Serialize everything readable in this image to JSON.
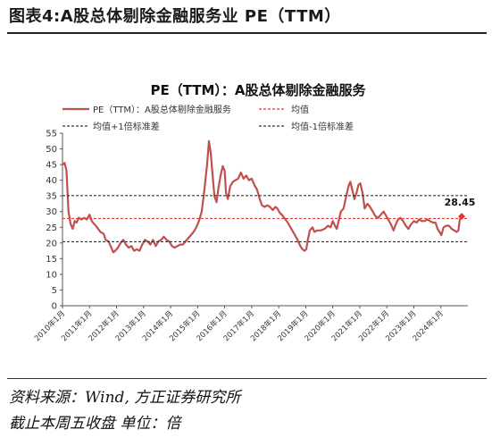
{
  "figure_title": "图表4:A股总体剔除金融服务业 PE（TTM）",
  "source": "资料来源：Wind, 方正证券研究所",
  "note": "截止本周五收盘 单位：倍",
  "chart_data": {
    "type": "line",
    "title": "PE（TTM）：A股总体剔除金融服务",
    "ylim": [
      0,
      55
    ],
    "yticks": [
      0,
      5,
      10,
      15,
      20,
      25,
      30,
      35,
      40,
      45,
      50,
      55
    ],
    "xlim": [
      2010.0,
      2025.0
    ],
    "xticks": [
      {
        "x": 2010.0,
        "label": "2010年1月"
      },
      {
        "x": 2011.0,
        "label": "2011年1月"
      },
      {
        "x": 2012.0,
        "label": "2012年1月"
      },
      {
        "x": 2013.0,
        "label": "2013年1月"
      },
      {
        "x": 2014.0,
        "label": "2014年1月"
      },
      {
        "x": 2015.0,
        "label": "2015年1月"
      },
      {
        "x": 2016.0,
        "label": "2016年1月"
      },
      {
        "x": 2017.0,
        "label": "2017年1月"
      },
      {
        "x": 2018.0,
        "label": "2018年1月"
      },
      {
        "x": 2019.0,
        "label": "2019年1月"
      },
      {
        "x": 2020.0,
        "label": "2020年1月"
      },
      {
        "x": 2021.0,
        "label": "2021年1月"
      },
      {
        "x": 2022.0,
        "label": "2022年1月"
      },
      {
        "x": 2023.0,
        "label": "2023年1月"
      },
      {
        "x": 2024.0,
        "label": "2024年1月"
      }
    ],
    "grid": false,
    "legend": "top-left",
    "series": [
      {
        "name": "PE（TTM）：A股总体剔除金融服务",
        "color": "#c0504d",
        "style": "solid",
        "points": [
          [
            2010.0,
            45.0
          ],
          [
            2010.08,
            45.5
          ],
          [
            2010.15,
            43.0
          ],
          [
            2010.22,
            30.0
          ],
          [
            2010.3,
            26.0
          ],
          [
            2010.38,
            24.5
          ],
          [
            2010.45,
            27.0
          ],
          [
            2010.52,
            26.5
          ],
          [
            2010.6,
            28.0
          ],
          [
            2010.7,
            27.5
          ],
          [
            2010.8,
            28.0
          ],
          [
            2010.9,
            27.5
          ],
          [
            2011.0,
            29.0
          ],
          [
            2011.08,
            27.0
          ],
          [
            2011.18,
            26.0
          ],
          [
            2011.28,
            25.0
          ],
          [
            2011.4,
            23.5
          ],
          [
            2011.52,
            23.0
          ],
          [
            2011.6,
            21.0
          ],
          [
            2011.7,
            20.5
          ],
          [
            2011.78,
            19.0
          ],
          [
            2011.88,
            17.0
          ],
          [
            2011.95,
            17.5
          ],
          [
            2012.05,
            18.5
          ],
          [
            2012.15,
            20.0
          ],
          [
            2012.25,
            21.0
          ],
          [
            2012.35,
            19.5
          ],
          [
            2012.45,
            18.5
          ],
          [
            2012.55,
            19.0
          ],
          [
            2012.65,
            17.5
          ],
          [
            2012.75,
            18.0
          ],
          [
            2012.85,
            17.5
          ],
          [
            2012.95,
            19.5
          ],
          [
            2013.05,
            21.0
          ],
          [
            2013.15,
            20.5
          ],
          [
            2013.25,
            19.5
          ],
          [
            2013.35,
            21.0
          ],
          [
            2013.45,
            19.0
          ],
          [
            2013.55,
            20.5
          ],
          [
            2013.65,
            21.0
          ],
          [
            2013.75,
            22.0
          ],
          [
            2013.85,
            21.0
          ],
          [
            2013.95,
            20.5
          ],
          [
            2014.05,
            19.0
          ],
          [
            2014.15,
            18.5
          ],
          [
            2014.25,
            19.0
          ],
          [
            2014.35,
            19.5
          ],
          [
            2014.45,
            19.5
          ],
          [
            2014.55,
            20.5
          ],
          [
            2014.65,
            21.5
          ],
          [
            2014.75,
            22.5
          ],
          [
            2014.85,
            23.5
          ],
          [
            2014.95,
            25.0
          ],
          [
            2015.05,
            27.0
          ],
          [
            2015.15,
            30.0
          ],
          [
            2015.25,
            37.0
          ],
          [
            2015.35,
            45.0
          ],
          [
            2015.42,
            52.5
          ],
          [
            2015.48,
            49.0
          ],
          [
            2015.55,
            42.0
          ],
          [
            2015.62,
            35.0
          ],
          [
            2015.7,
            33.0
          ],
          [
            2015.78,
            38.0
          ],
          [
            2015.86,
            42.0
          ],
          [
            2015.93,
            44.5
          ],
          [
            2016.0,
            43.0
          ],
          [
            2016.05,
            36.0
          ],
          [
            2016.12,
            34.0
          ],
          [
            2016.2,
            38.0
          ],
          [
            2016.3,
            39.5
          ],
          [
            2016.4,
            40.0
          ],
          [
            2016.5,
            40.5
          ],
          [
            2016.6,
            42.5
          ],
          [
            2016.7,
            40.5
          ],
          [
            2016.8,
            41.5
          ],
          [
            2016.9,
            40.0
          ],
          [
            2017.0,
            40.5
          ],
          [
            2017.1,
            38.5
          ],
          [
            2017.2,
            37.0
          ],
          [
            2017.3,
            34.0
          ],
          [
            2017.38,
            32.0
          ],
          [
            2017.48,
            31.5
          ],
          [
            2017.58,
            32.0
          ],
          [
            2017.68,
            31.5
          ],
          [
            2017.78,
            30.5
          ],
          [
            2017.88,
            31.5
          ],
          [
            2017.95,
            31.0
          ],
          [
            2018.05,
            29.5
          ],
          [
            2018.12,
            29.0
          ],
          [
            2018.2,
            28.0
          ],
          [
            2018.3,
            27.0
          ],
          [
            2018.4,
            25.5
          ],
          [
            2018.5,
            24.0
          ],
          [
            2018.6,
            22.5
          ],
          [
            2018.7,
            21.0
          ],
          [
            2018.8,
            19.0
          ],
          [
            2018.88,
            18.0
          ],
          [
            2018.95,
            17.5
          ],
          [
            2019.02,
            18.0
          ],
          [
            2019.08,
            21.0
          ],
          [
            2019.15,
            24.0
          ],
          [
            2019.25,
            25.0
          ],
          [
            2019.32,
            23.5
          ],
          [
            2019.42,
            24.0
          ],
          [
            2019.55,
            24.0
          ],
          [
            2019.7,
            24.5
          ],
          [
            2019.82,
            25.5
          ],
          [
            2019.92,
            25.0
          ],
          [
            2020.0,
            27.0
          ],
          [
            2020.08,
            25.5
          ],
          [
            2020.15,
            24.5
          ],
          [
            2020.22,
            27.0
          ],
          [
            2020.3,
            30.0
          ],
          [
            2020.4,
            31.0
          ],
          [
            2020.5,
            35.0
          ],
          [
            2020.58,
            38.0
          ],
          [
            2020.65,
            39.5
          ],
          [
            2020.72,
            37.0
          ],
          [
            2020.8,
            34.0
          ],
          [
            2020.88,
            36.0
          ],
          [
            2020.95,
            38.5
          ],
          [
            2021.02,
            39.0
          ],
          [
            2021.1,
            36.0
          ],
          [
            2021.18,
            31.0
          ],
          [
            2021.28,
            32.5
          ],
          [
            2021.38,
            31.5
          ],
          [
            2021.48,
            30.0
          ],
          [
            2021.58,
            28.5
          ],
          [
            2021.68,
            28.0
          ],
          [
            2021.78,
            29.0
          ],
          [
            2021.88,
            30.0
          ],
          [
            2021.95,
            29.0
          ],
          [
            2022.05,
            27.5
          ],
          [
            2022.15,
            26.0
          ],
          [
            2022.25,
            24.0
          ],
          [
            2022.33,
            26.0
          ],
          [
            2022.42,
            27.5
          ],
          [
            2022.5,
            28.0
          ],
          [
            2022.6,
            27.0
          ],
          [
            2022.7,
            25.5
          ],
          [
            2022.8,
            24.5
          ],
          [
            2022.9,
            26.0
          ],
          [
            2023.0,
            27.0
          ],
          [
            2023.1,
            26.5
          ],
          [
            2023.2,
            27.5
          ],
          [
            2023.3,
            27.0
          ],
          [
            2023.4,
            27.0
          ],
          [
            2023.5,
            27.5
          ],
          [
            2023.6,
            27.0
          ],
          [
            2023.7,
            26.5
          ],
          [
            2023.8,
            26.5
          ],
          [
            2023.88,
            24.5
          ],
          [
            2023.95,
            23.5
          ],
          [
            2024.02,
            22.5
          ],
          [
            2024.1,
            25.0
          ],
          [
            2024.2,
            25.5
          ],
          [
            2024.3,
            25.5
          ],
          [
            2024.4,
            24.5
          ],
          [
            2024.5,
            24.0
          ],
          [
            2024.58,
            23.5
          ],
          [
            2024.65,
            24.0
          ],
          [
            2024.7,
            27.5
          ],
          [
            2024.77,
            28.45
          ]
        ]
      },
      {
        "name": "均值",
        "color": "#e53935",
        "style": "dashed",
        "constant": 27.8
      },
      {
        "name": "均值+1倍标准差",
        "color": "#333333",
        "style": "dashed",
        "constant": 35.1
      },
      {
        "name": "均值-1倍标准差",
        "color": "#333333",
        "style": "dashed",
        "constant": 20.4
      }
    ],
    "annotations": [
      {
        "x": 2024.77,
        "y": 28.45,
        "text": "28.45",
        "marker_color": "#e53935"
      }
    ]
  }
}
